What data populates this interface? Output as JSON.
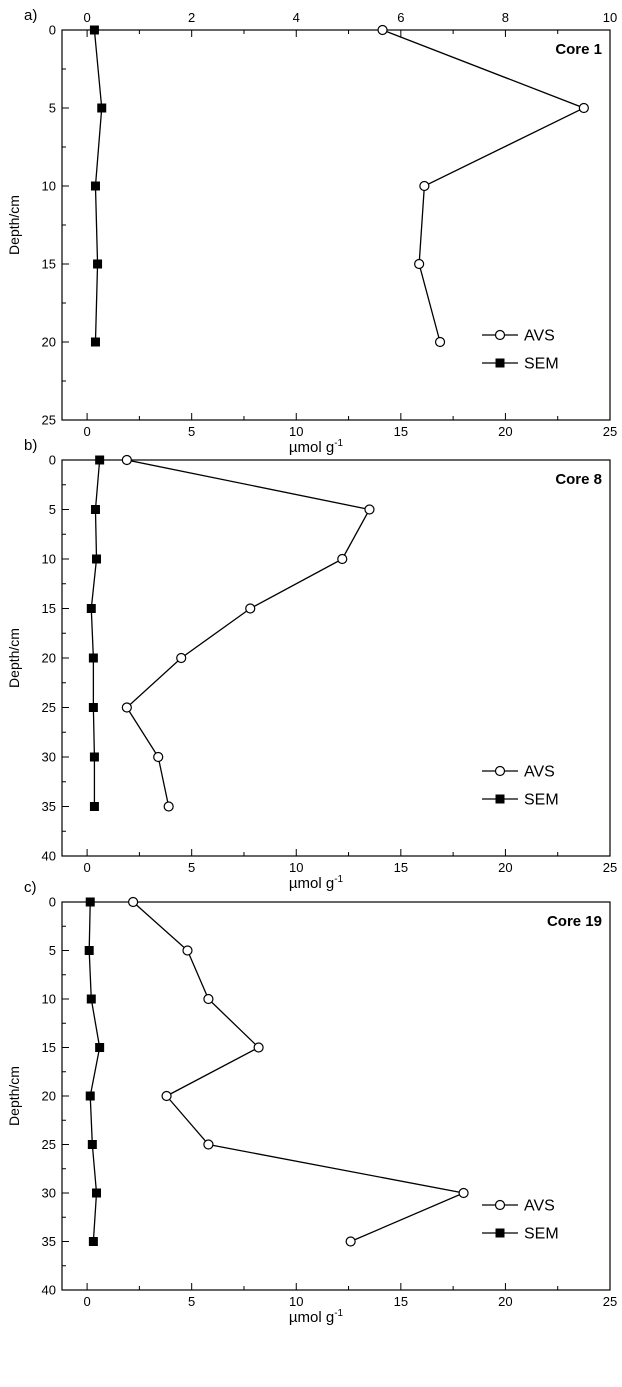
{
  "chart_data": [
    {
      "type": "line",
      "panel_label": "a)",
      "title": "Core 1",
      "xlabel": "µmol g",
      "xlabel_sup": "-1",
      "ylabel": "Depth/cm",
      "xlim": [
        -1.2,
        25
      ],
      "ylim": [
        0,
        25
      ],
      "y_inverted": true,
      "x_ticks": [
        "0",
        "5",
        "10",
        "15",
        "20",
        "25"
      ],
      "y_ticks": [
        "0",
        "5",
        "10",
        "15",
        "20",
        "25"
      ],
      "top_axis": {
        "xlim": [
          -0.48,
          10
        ],
        "ticks": [
          "0",
          "2",
          "4",
          "6",
          "8",
          "10"
        ]
      },
      "legend_position": "bottom-right",
      "series": [
        {
          "name": "AVS",
          "marker": "open-circle",
          "axis": "top",
          "x": [
            5.65,
            9.5,
            6.45,
            6.35,
            6.75
          ],
          "y": [
            0,
            5,
            10,
            15,
            20
          ]
        },
        {
          "name": "SEM",
          "marker": "filled-square",
          "axis": "bottom",
          "x": [
            0.35,
            0.7,
            0.4,
            0.5,
            0.4
          ],
          "y": [
            0,
            5,
            10,
            15,
            20
          ]
        }
      ]
    },
    {
      "type": "line",
      "panel_label": "b)",
      "title": "Core 8",
      "xlabel": "µmol g",
      "xlabel_sup": "-1",
      "ylabel": "Depth/cm",
      "xlim": [
        -1.2,
        25
      ],
      "ylim": [
        0,
        40
      ],
      "y_inverted": true,
      "x_ticks": [
        "0",
        "5",
        "10",
        "15",
        "20",
        "25"
      ],
      "y_ticks": [
        "0",
        "5",
        "10",
        "15",
        "20",
        "25",
        "30",
        "35",
        "40"
      ],
      "legend_position": "bottom-right",
      "series": [
        {
          "name": "AVS",
          "marker": "open-circle",
          "axis": "bottom",
          "x": [
            1.9,
            13.5,
            12.2,
            7.8,
            4.5,
            1.9,
            3.4,
            3.9
          ],
          "y": [
            0,
            5,
            10,
            15,
            20,
            25,
            30,
            35
          ]
        },
        {
          "name": "SEM",
          "marker": "filled-square",
          "axis": "bottom",
          "x": [
            0.6,
            0.4,
            0.45,
            0.2,
            0.3,
            0.3,
            0.35,
            0.35
          ],
          "y": [
            0,
            5,
            10,
            15,
            20,
            25,
            30,
            35
          ]
        }
      ]
    },
    {
      "type": "line",
      "panel_label": "c)",
      "title": "Core 19",
      "xlabel": "µmol g",
      "xlabel_sup": "-1",
      "ylabel": "Depth/cm",
      "xlim": [
        -1.2,
        25
      ],
      "ylim": [
        0,
        40
      ],
      "y_inverted": true,
      "x_ticks": [
        "0",
        "5",
        "10",
        "15",
        "20",
        "25"
      ],
      "y_ticks": [
        "0",
        "5",
        "10",
        "15",
        "20",
        "25",
        "30",
        "35",
        "40"
      ],
      "legend_position": "bottom-right",
      "series": [
        {
          "name": "AVS",
          "marker": "open-circle",
          "axis": "bottom",
          "x": [
            2.2,
            4.8,
            5.8,
            8.2,
            3.8,
            5.8,
            18.0,
            12.6
          ],
          "y": [
            0,
            5,
            10,
            15,
            20,
            25,
            30,
            35
          ]
        },
        {
          "name": "SEM",
          "marker": "filled-square",
          "axis": "bottom",
          "x": [
            0.15,
            0.1,
            0.2,
            0.6,
            0.15,
            0.25,
            0.45,
            0.3
          ],
          "y": [
            0,
            5,
            10,
            15,
            20,
            25,
            30,
            35
          ]
        }
      ]
    }
  ]
}
